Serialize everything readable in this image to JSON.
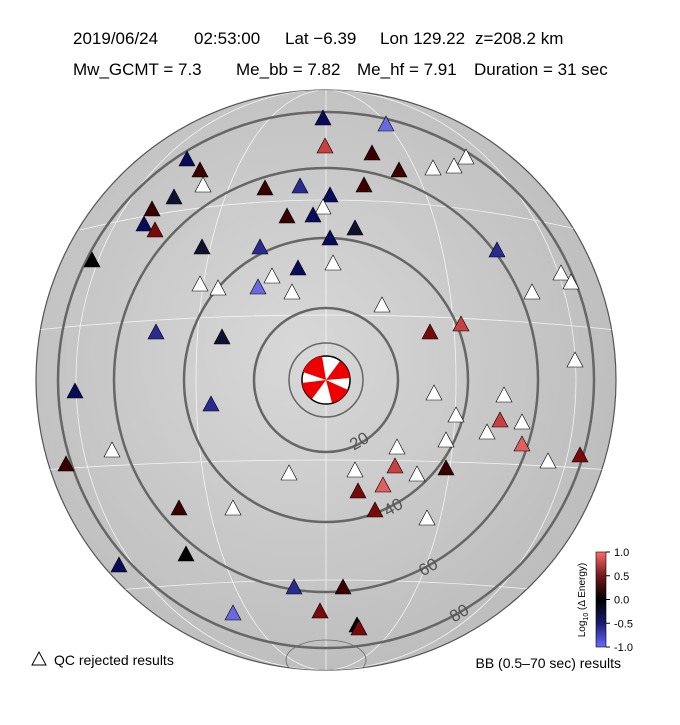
{
  "header": {
    "line1": [
      "2019/06/24",
      "02:53:00",
      "Lat −6.39",
      "Lon 129.22",
      "z=208.2 km"
    ],
    "line2": [
      "Mw_GCMT = 7.3",
      "Me_bb = 7.82",
      "Me_hf = 7.91",
      "Duration = 31 sec"
    ]
  },
  "distance_labels": [
    "20",
    "40",
    "60",
    "80"
  ],
  "legend": {
    "rejected": "QC rejected results",
    "results": "BB (0.5–70 sec) results"
  },
  "colorbar": {
    "label": "Log",
    "label_sub": "10",
    "label_rest": " (Δ Energy)",
    "lim": [
      -1,
      1
    ],
    "ticks": [
      {
        "value": 1,
        "label": "1.0"
      },
      0.5,
      {
        "value": 0,
        "label": "0.0"
      },
      -0.5,
      {
        "value": -1,
        "label": "-1.0"
      }
    ]
  }
}
